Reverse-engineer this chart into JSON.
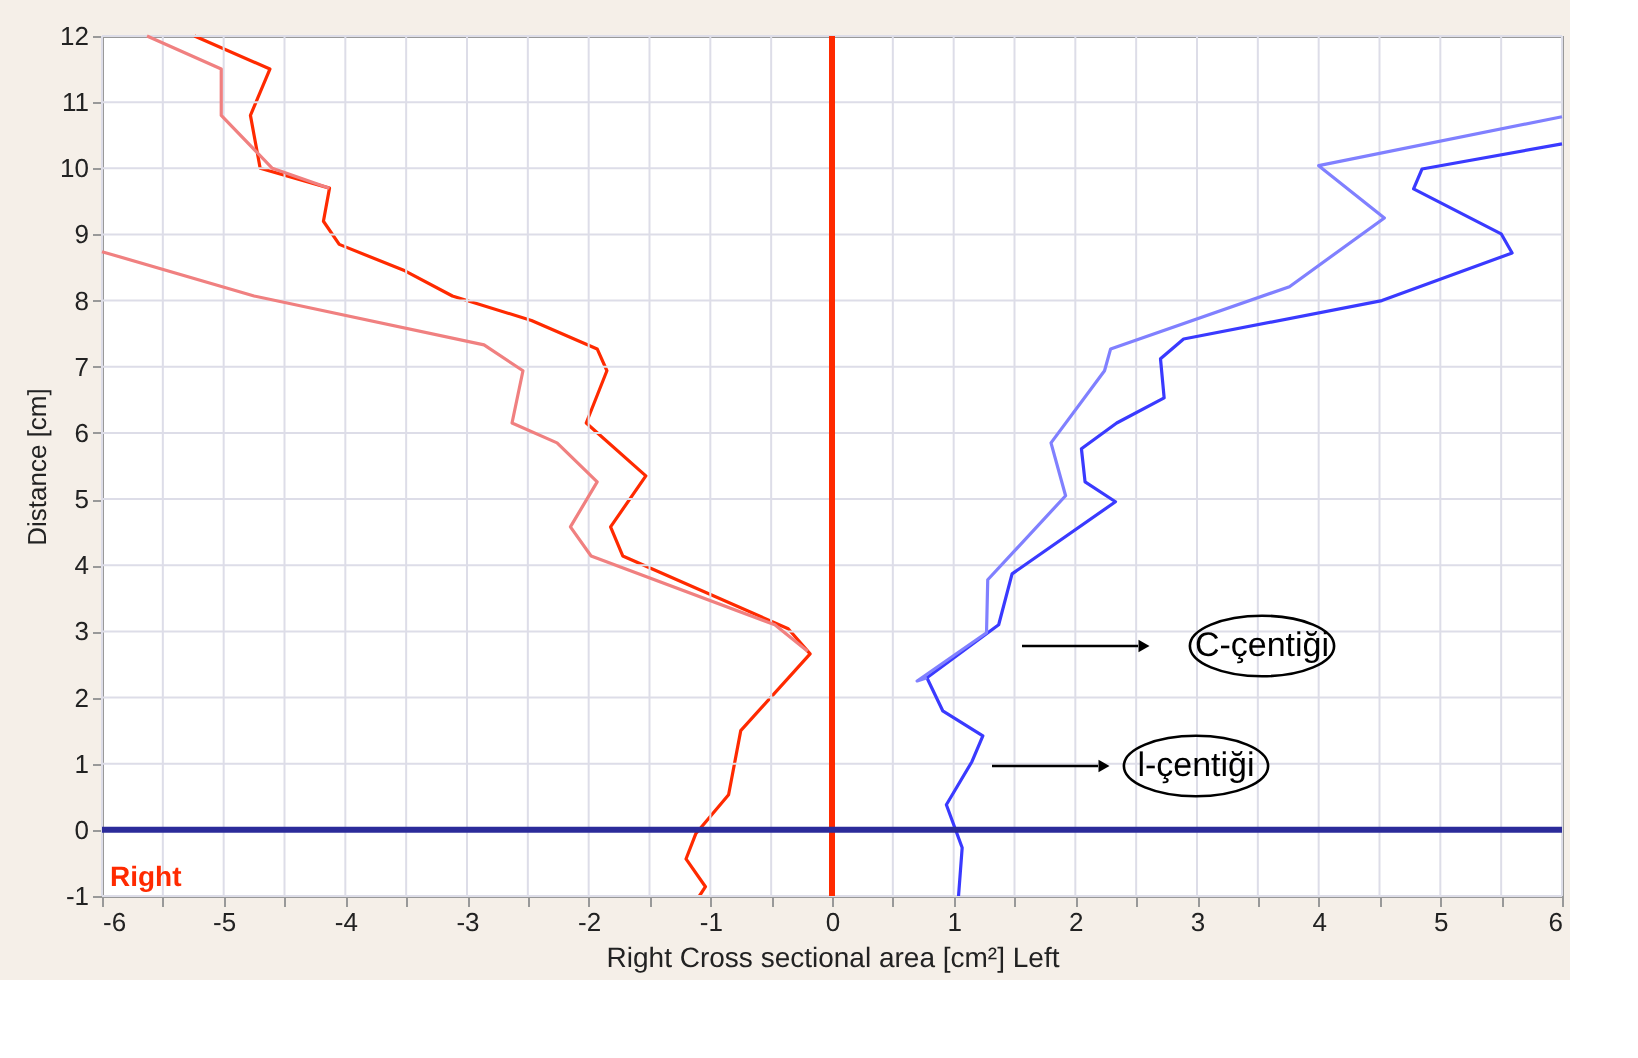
{
  "chart_data": {
    "type": "line",
    "xlabel": "Right      Cross sectional area [cm²]      Left",
    "ylabel": "Distance [cm]",
    "xlim": [
      -6,
      6
    ],
    "ylim": [
      -1,
      12
    ],
    "xticks": [
      -6,
      {
        "value": -5.5,
        "label": null
      },
      -5,
      {
        "value": -4.5,
        "label": null
      },
      -4,
      {
        "value": -3.5,
        "label": null
      },
      -3,
      {
        "value": -2.5,
        "label": null
      },
      -2,
      {
        "value": -1.5,
        "label": null
      },
      -1,
      {
        "value": -0.5,
        "label": null
      },
      0,
      {
        "value": 0.5,
        "label": null
      },
      1,
      {
        "value": 1.5,
        "label": null
      },
      2,
      {
        "value": 2.5,
        "label": null
      },
      3,
      {
        "value": 3.5,
        "label": null
      },
      4,
      {
        "value": 4.5,
        "label": null
      },
      5,
      {
        "value": 5.5,
        "label": null
      },
      6
    ],
    "yticks": [
      -1,
      0,
      1,
      2,
      3,
      4,
      5,
      6,
      7,
      8,
      9,
      10,
      11,
      12
    ],
    "grid": true,
    "marker": "none",
    "line_style": "solid",
    "series": [
      {
        "color": "#ff2a00",
        "x": [
          -5.24,
          -4.62,
          -4.78,
          -4.7,
          -4.13,
          -4.18,
          -4.05,
          -3.51,
          -3.12,
          -2.47,
          -1.93,
          -1.85,
          -2.02,
          -1.53,
          -1.82,
          -1.72,
          -0.36,
          -0.18,
          -0.75,
          -0.85,
          -1.12,
          -1.2,
          -1.04,
          -1.09
        ],
        "values": [
          12,
          11.5,
          10.8,
          10,
          9.7,
          9.2,
          8.85,
          8.45,
          8.07,
          7.7,
          7.27,
          6.94,
          6.15,
          5.35,
          4.58,
          4.14,
          3.04,
          2.66,
          1.5,
          0.53,
          -0.06,
          -0.44,
          -0.86,
          -1
        ]
      },
      {
        "color": "#f08080",
        "x": [
          -6,
          -4.75,
          -2.86,
          -2.54,
          -2.63,
          -2.26,
          -1.93,
          -2.15,
          -1.98,
          -0.47,
          -0.2
        ],
        "values": [
          8.74,
          8.07,
          7.33,
          6.94,
          6.15,
          5.85,
          5.26,
          4.58,
          4.14,
          3.1,
          2.7
        ]
      },
      {
        "color": "#f08080",
        "x": [
          -5.63,
          -5.02,
          -5.02,
          -4.6,
          -4.13
        ],
        "values": [
          12,
          11.5,
          10.8,
          10,
          9.7
        ]
      },
      {
        "color": "#3a3aff",
        "x": [
          6,
          4.85,
          4.78,
          5.5,
          5.59,
          4.52,
          2.89,
          2.7,
          2.73,
          2.34,
          2.05,
          2.08,
          2.33,
          1.48,
          1.37,
          0.78,
          0.91,
          1.24,
          1.15,
          0.94,
          1.07,
          1.04
        ],
        "values": [
          10.37,
          9.99,
          9.69,
          9.01,
          8.72,
          8,
          7.42,
          7.12,
          6.53,
          6.15,
          5.76,
          5.26,
          4.96,
          3.87,
          3.1,
          2.3,
          1.8,
          1.42,
          1.03,
          0.38,
          -0.27,
          -1
        ]
      },
      {
        "color": "#8080ff",
        "x": [
          6,
          4,
          4.54,
          3.76,
          2.29,
          2.24,
          1.8,
          1.92,
          1.28,
          1.27,
          0.7,
          0.78
        ],
        "values": [
          10.78,
          10.04,
          9.25,
          8.21,
          7.27,
          6.94,
          5.85,
          5.05,
          3.78,
          2.98,
          2.25,
          2.3
        ]
      }
    ],
    "ref_lines": [
      {
        "axis": "x",
        "value": 0,
        "color": "#ff2a00"
      },
      {
        "axis": "y",
        "value": 0,
        "color": "#2b2b9a"
      }
    ],
    "annotations": [
      "C-çentiği",
      "l-çentiği",
      "Right"
    ]
  }
}
